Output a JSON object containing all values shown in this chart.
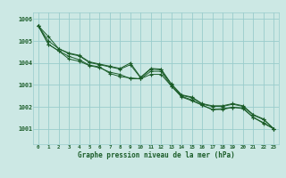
{
  "background_color": "#cce8e4",
  "grid_color": "#99cccc",
  "line_color": "#1a5c28",
  "marker_color": "#1a5c28",
  "title": "Graphe pression niveau de la mer (hPa)",
  "xlim": [
    -0.5,
    23.5
  ],
  "ylim": [
    1000.3,
    1006.3
  ],
  "yticks": [
    1001,
    1002,
    1003,
    1004,
    1005,
    1006
  ],
  "xticks": [
    0,
    1,
    2,
    3,
    4,
    5,
    6,
    7,
    8,
    9,
    10,
    11,
    12,
    13,
    14,
    15,
    16,
    17,
    18,
    19,
    20,
    21,
    22,
    23
  ],
  "series": [
    [
      1005.7,
      1005.2,
      1004.65,
      1004.45,
      1004.35,
      1004.05,
      1003.95,
      1003.85,
      1003.75,
      1004.0,
      1003.35,
      1003.75,
      1003.72,
      1003.05,
      1002.55,
      1002.45,
      1002.15,
      1002.05,
      1002.05,
      1002.15,
      1002.05,
      1001.65,
      1001.45,
      1001.0
    ],
    [
      1005.7,
      1005.0,
      1004.65,
      1004.42,
      1004.32,
      1004.02,
      1003.92,
      1003.82,
      1003.72,
      1003.92,
      1003.32,
      1003.72,
      1003.69,
      1003.02,
      1002.52,
      1002.42,
      1002.12,
      1002.02,
      1002.02,
      1002.12,
      1002.02,
      1001.62,
      1001.42,
      1001.0
    ],
    [
      1005.7,
      1004.85,
      1004.55,
      1004.3,
      1004.15,
      1003.9,
      1003.82,
      1003.52,
      1003.38,
      1003.32,
      1003.28,
      1003.62,
      1003.62,
      1002.95,
      1002.48,
      1002.32,
      1002.08,
      1001.88,
      1001.92,
      1001.98,
      1001.95,
      1001.52,
      1001.28,
      1001.0
    ],
    [
      1005.7,
      1004.85,
      1004.55,
      1004.18,
      1004.08,
      1003.88,
      1003.78,
      1003.58,
      1003.48,
      1003.28,
      1003.28,
      1003.48,
      1003.48,
      1002.95,
      1002.45,
      1002.28,
      1002.08,
      1001.88,
      1001.88,
      1001.98,
      1001.92,
      1001.52,
      1001.25,
      1001.0
    ]
  ]
}
